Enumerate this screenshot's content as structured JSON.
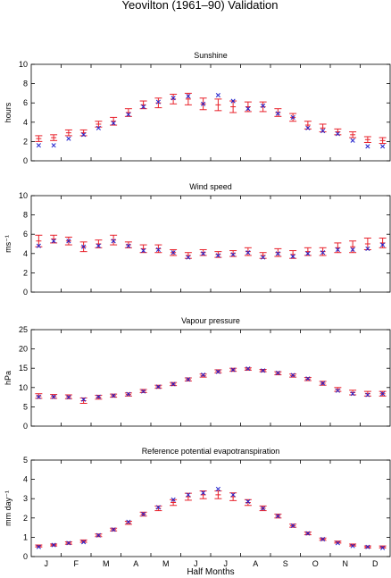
{
  "figure": {
    "title": "Yeovilton (1961–90) Validation",
    "xlabel": "Half Months"
  },
  "months": [
    "J",
    "F",
    "M",
    "A",
    "M",
    "J",
    "J",
    "A",
    "S",
    "O",
    "N",
    "D"
  ],
  "colors": {
    "model": "#e8202a",
    "observed": "#2222cc",
    "axis": "#000000"
  },
  "chart_data": [
    {
      "type": "errorbar",
      "title": "Sunshine",
      "ylabel": "hours",
      "ylim": [
        0,
        10
      ],
      "yticks": [
        0,
        2,
        4,
        6,
        8,
        10
      ],
      "x": [
        1,
        2,
        3,
        4,
        5,
        6,
        7,
        8,
        9,
        10,
        11,
        12,
        13,
        14,
        15,
        16,
        17,
        18,
        19,
        20,
        21,
        22,
        23,
        24
      ],
      "series": [
        {
          "role": "model",
          "marker": "bar",
          "values": [
            2.3,
            2.4,
            2.9,
            2.9,
            3.8,
            4.1,
            5.0,
            5.8,
            6.0,
            6.4,
            6.4,
            5.9,
            5.8,
            5.6,
            5.6,
            5.6,
            5.0,
            4.5,
            3.7,
            3.4,
            3.0,
            2.7,
            2.2,
            2.1
          ],
          "err": [
            0.3,
            0.3,
            0.3,
            0.3,
            0.3,
            0.4,
            0.4,
            0.4,
            0.5,
            0.5,
            0.6,
            0.6,
            0.6,
            0.6,
            0.5,
            0.5,
            0.4,
            0.4,
            0.4,
            0.4,
            0.3,
            0.3,
            0.3,
            0.3
          ]
        },
        {
          "role": "observed",
          "marker": "x",
          "values": [
            1.6,
            1.6,
            2.3,
            2.7,
            3.4,
            3.9,
            4.8,
            5.6,
            6.1,
            6.5,
            6.7,
            5.9,
            6.8,
            6.2,
            5.4,
            5.7,
            4.9,
            4.5,
            3.4,
            3.1,
            2.8,
            2.1,
            1.5,
            1.5
          ]
        }
      ]
    },
    {
      "type": "errorbar",
      "title": "Wind speed",
      "ylabel": "ms⁻¹",
      "ylim": [
        0,
        10
      ],
      "yticks": [
        0,
        2,
        4,
        6,
        8,
        10
      ],
      "x": [
        1,
        2,
        3,
        4,
        5,
        6,
        7,
        8,
        9,
        10,
        11,
        12,
        13,
        14,
        15,
        16,
        17,
        18,
        19,
        20,
        21,
        22,
        23,
        24
      ],
      "series": [
        {
          "role": "model",
          "marker": "bar",
          "values": [
            5.3,
            5.5,
            5.3,
            4.7,
            5.0,
            5.4,
            4.9,
            4.5,
            4.5,
            4.1,
            3.8,
            4.1,
            3.9,
            4.0,
            4.2,
            3.8,
            4.1,
            3.9,
            4.2,
            4.2,
            4.6,
            4.7,
            5.0,
            5.1
          ],
          "err": [
            0.6,
            0.4,
            0.4,
            0.5,
            0.4,
            0.5,
            0.3,
            0.4,
            0.4,
            0.3,
            0.3,
            0.3,
            0.3,
            0.3,
            0.4,
            0.3,
            0.4,
            0.4,
            0.4,
            0.4,
            0.5,
            0.6,
            0.6,
            0.5
          ]
        },
        {
          "role": "observed",
          "marker": "x",
          "values": [
            4.8,
            5.3,
            5.3,
            4.7,
            4.8,
            5.3,
            4.8,
            4.3,
            4.4,
            4.1,
            3.6,
            4.0,
            3.8,
            3.9,
            4.1,
            3.6,
            4.0,
            3.7,
            4.0,
            4.1,
            4.4,
            4.4,
            4.5,
            4.9
          ]
        }
      ]
    },
    {
      "type": "errorbar",
      "title": "Vapour pressure",
      "ylabel": "hPa",
      "ylim": [
        0,
        25
      ],
      "yticks": [
        0,
        5,
        10,
        15,
        20,
        25
      ],
      "x": [
        1,
        2,
        3,
        4,
        5,
        6,
        7,
        8,
        9,
        10,
        11,
        12,
        13,
        14,
        15,
        16,
        17,
        18,
        19,
        20,
        21,
        22,
        23,
        24
      ],
      "series": [
        {
          "role": "model",
          "marker": "bar",
          "values": [
            7.8,
            7.7,
            7.6,
            6.6,
            7.5,
            7.9,
            8.2,
            9.1,
            10.2,
            10.9,
            12.1,
            13.1,
            14.2,
            14.6,
            14.8,
            14.4,
            13.7,
            13.1,
            12.2,
            11.1,
            9.5,
            8.7,
            8.4,
            8.4
          ],
          "err": [
            0.6,
            0.5,
            0.5,
            0.7,
            0.5,
            0.4,
            0.4,
            0.4,
            0.4,
            0.4,
            0.4,
            0.4,
            0.4,
            0.4,
            0.3,
            0.3,
            0.4,
            0.4,
            0.4,
            0.5,
            0.5,
            0.6,
            0.6,
            0.6
          ]
        },
        {
          "role": "observed",
          "marker": "x",
          "values": [
            7.6,
            7.6,
            7.5,
            6.9,
            7.6,
            7.9,
            8.3,
            9.0,
            10.2,
            10.9,
            12.1,
            13.3,
            14.1,
            14.6,
            14.9,
            14.4,
            13.8,
            13.2,
            12.3,
            11.1,
            9.2,
            8.4,
            8.1,
            8.4
          ]
        }
      ]
    },
    {
      "type": "errorbar",
      "title": "Reference potential evapotranspiration",
      "ylabel": "mm day⁻¹",
      "ylim": [
        0,
        5
      ],
      "yticks": [
        0,
        1,
        2,
        3,
        4,
        5
      ],
      "x": [
        1,
        2,
        3,
        4,
        5,
        6,
        7,
        8,
        9,
        10,
        11,
        12,
        13,
        14,
        15,
        16,
        17,
        18,
        19,
        20,
        21,
        22,
        23,
        24
      ],
      "series": [
        {
          "role": "model",
          "marker": "bar",
          "values": [
            0.55,
            0.6,
            0.7,
            0.8,
            1.1,
            1.4,
            1.75,
            2.2,
            2.5,
            2.8,
            3.1,
            3.2,
            3.2,
            3.1,
            2.8,
            2.5,
            2.1,
            1.6,
            1.2,
            0.9,
            0.75,
            0.6,
            0.5,
            0.5
          ],
          "err": [
            0.05,
            0.05,
            0.06,
            0.06,
            0.07,
            0.07,
            0.08,
            0.1,
            0.12,
            0.15,
            0.18,
            0.2,
            0.2,
            0.2,
            0.15,
            0.12,
            0.1,
            0.08,
            0.07,
            0.06,
            0.05,
            0.05,
            0.05,
            0.05
          ]
        },
        {
          "role": "observed",
          "marker": "x",
          "values": [
            0.5,
            0.6,
            0.7,
            0.75,
            1.1,
            1.4,
            1.8,
            2.2,
            2.55,
            2.95,
            3.2,
            3.3,
            3.5,
            3.2,
            2.85,
            2.5,
            2.1,
            1.6,
            1.2,
            0.9,
            0.7,
            0.55,
            0.5,
            0.45
          ]
        }
      ]
    }
  ]
}
